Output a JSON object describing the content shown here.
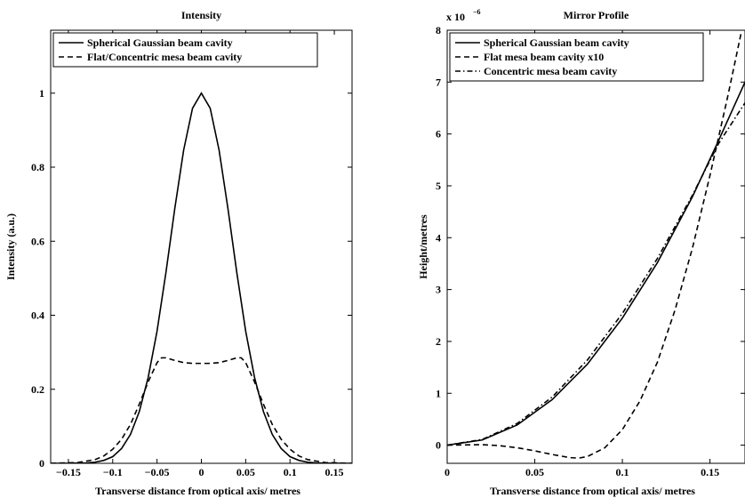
{
  "chart_data": [
    {
      "type": "line",
      "title": "Intensity",
      "xlabel": "Transverse distance from optical axis/ metres",
      "ylabel": "Intensity (a.u.)",
      "xlim": [
        -0.17,
        0.17
      ],
      "ylim": [
        0,
        1.17
      ],
      "xticks": [
        -0.15,
        -0.1,
        -0.05,
        0,
        0.05,
        0.1,
        0.15
      ],
      "xtick_labels": [
        "−0.15",
        "−0.1",
        "−0.05",
        "0",
        "0.05",
        "0.1",
        "0.15"
      ],
      "yticks": [
        0,
        0.2,
        0.4,
        0.6,
        0.8,
        1
      ],
      "ytick_labels": [
        "0",
        "0.2",
        "0.4",
        "0.6",
        "0.8",
        "1"
      ],
      "legend_position": "top-left",
      "series": [
        {
          "name": "Spherical Gaussian beam cavity",
          "style": "solid",
          "x": [
            -0.17,
            -0.15,
            -0.13,
            -0.12,
            -0.11,
            -0.1,
            -0.09,
            -0.08,
            -0.07,
            -0.06,
            -0.05,
            -0.04,
            -0.03,
            -0.02,
            -0.01,
            0,
            0.01,
            0.02,
            0.03,
            0.04,
            0.05,
            0.06,
            0.07,
            0.08,
            0.09,
            0.1,
            0.11,
            0.12,
            0.13,
            0.15,
            0.17
          ],
          "y": [
            0,
            0.0001,
            0.001,
            0.003,
            0.008,
            0.018,
            0.04,
            0.078,
            0.14,
            0.232,
            0.357,
            0.515,
            0.688,
            0.846,
            0.959,
            1.0,
            0.959,
            0.846,
            0.688,
            0.515,
            0.357,
            0.232,
            0.14,
            0.078,
            0.04,
            0.018,
            0.008,
            0.003,
            0.001,
            0.0001,
            0
          ]
        },
        {
          "name": "Flat/Concentric mesa beam cavity",
          "style": "dashed",
          "x": [
            -0.17,
            -0.14,
            -0.12,
            -0.11,
            -0.1,
            -0.09,
            -0.08,
            -0.07,
            -0.06,
            -0.05,
            -0.045,
            -0.04,
            -0.03,
            -0.02,
            -0.01,
            0,
            0.01,
            0.02,
            0.03,
            0.04,
            0.045,
            0.05,
            0.06,
            0.07,
            0.08,
            0.09,
            0.1,
            0.11,
            0.12,
            0.14,
            0.17
          ],
          "y": [
            0,
            0.002,
            0.01,
            0.02,
            0.038,
            0.065,
            0.105,
            0.16,
            0.22,
            0.272,
            0.285,
            0.285,
            0.278,
            0.272,
            0.27,
            0.27,
            0.27,
            0.272,
            0.278,
            0.285,
            0.285,
            0.272,
            0.22,
            0.16,
            0.105,
            0.065,
            0.038,
            0.02,
            0.01,
            0.002,
            0
          ]
        }
      ]
    },
    {
      "type": "line",
      "title": "Mirror Profile",
      "xlabel": "Transverse distance from optical axis/ metres",
      "ylabel": "Height/metres",
      "y_multiplier_label": "x 10",
      "y_multiplier_exponent": "−6",
      "xlim": [
        0,
        0.17
      ],
      "ylim": [
        -0.35,
        8
      ],
      "xticks": [
        0,
        0.05,
        0.1,
        0.15
      ],
      "xtick_labels": [
        "0",
        "0.05",
        "0.1",
        "0.15"
      ],
      "yticks": [
        0,
        1,
        2,
        3,
        4,
        5,
        6,
        7,
        8
      ],
      "ytick_labels": [
        "0",
        "1",
        "2",
        "3",
        "4",
        "5",
        "6",
        "7",
        "8"
      ],
      "units_note": "y values in units of 1e-6 metres",
      "legend_position": "top-left",
      "series": [
        {
          "name": "Spherical Gaussian beam cavity",
          "style": "solid",
          "x": [
            0,
            0.02,
            0.04,
            0.06,
            0.08,
            0.1,
            0.12,
            0.14,
            0.155,
            0.17
          ],
          "y": [
            0,
            0.1,
            0.39,
            0.88,
            1.56,
            2.45,
            3.52,
            4.79,
            5.88,
            7.0
          ]
        },
        {
          "name": "Flat mesa beam cavity x10",
          "style": "dashed",
          "x": [
            0,
            0.02,
            0.03,
            0.04,
            0.05,
            0.06,
            0.07,
            0.075,
            0.08,
            0.09,
            0.1,
            0.11,
            0.12,
            0.13,
            0.14,
            0.15,
            0.16,
            0.17
          ],
          "y": [
            0,
            0.01,
            -0.01,
            -0.05,
            -0.11,
            -0.18,
            -0.24,
            -0.25,
            -0.22,
            -0.05,
            0.3,
            0.85,
            1.6,
            2.6,
            3.8,
            5.2,
            6.7,
            8.3
          ]
        },
        {
          "name": "Concentric mesa beam cavity",
          "style": "dashdot",
          "x": [
            0,
            0.02,
            0.04,
            0.06,
            0.08,
            0.1,
            0.12,
            0.14,
            0.155,
            0.17
          ],
          "y": [
            0,
            0.11,
            0.42,
            0.93,
            1.64,
            2.54,
            3.6,
            4.82,
            5.82,
            6.6
          ]
        }
      ]
    }
  ]
}
